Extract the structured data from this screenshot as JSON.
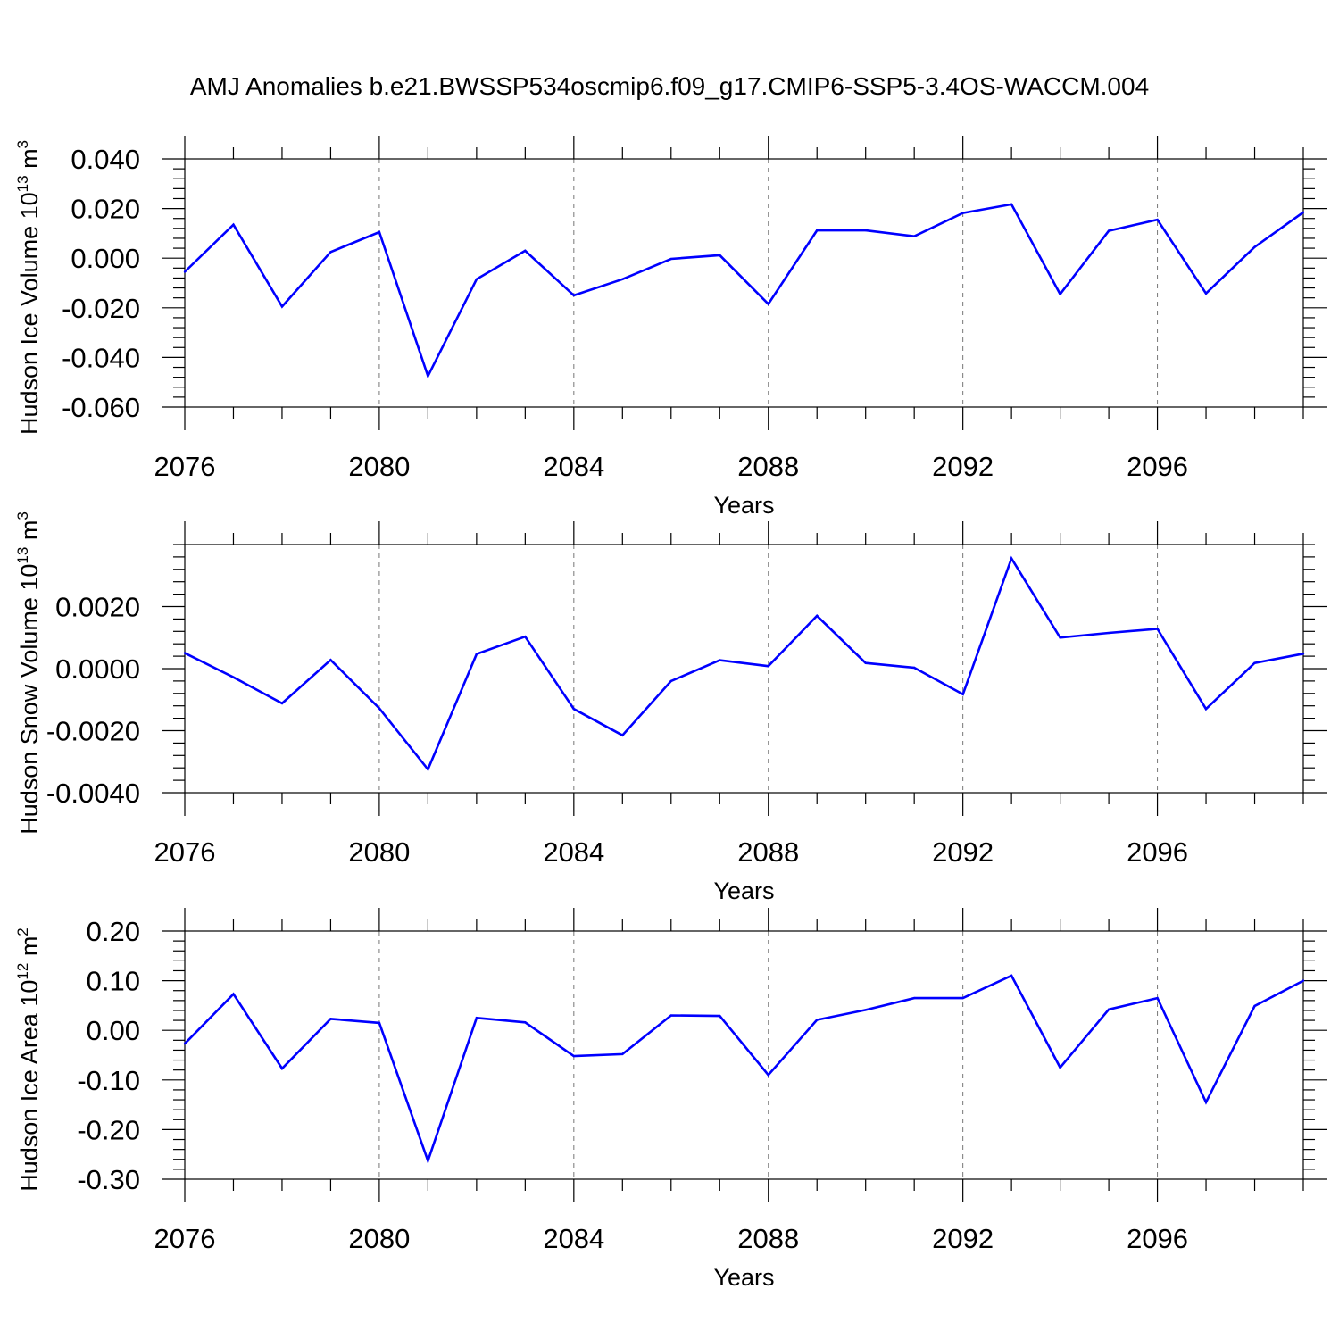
{
  "title": "AMJ Anomalies b.e21.BWSSP534oscmip6.f09_g17.CMIP6-SSP5-3.4OS-WACCM.004",
  "line_color": "#0000ff",
  "chart_data": [
    {
      "type": "line",
      "xlabel": "Years",
      "ylabel": {
        "text": "Hudson Ice Volume 10",
        "exp": "13",
        "unit": "m",
        "unit_exp": "3"
      },
      "x": [
        2076,
        2077,
        2078,
        2079,
        2080,
        2081,
        2082,
        2083,
        2084,
        2085,
        2086,
        2087,
        2088,
        2089,
        2090,
        2091,
        2092,
        2093,
        2094,
        2095,
        2096,
        2097,
        2098,
        2099
      ],
      "values": [
        -0.0055,
        0.0135,
        -0.0195,
        0.0025,
        0.0105,
        -0.0475,
        -0.0085,
        0.003,
        -0.015,
        -0.0085,
        -0.0003,
        0.0012,
        -0.0185,
        0.0112,
        0.0112,
        0.0088,
        0.0182,
        0.0217,
        -0.0145,
        0.011,
        0.0155,
        -0.0142,
        0.0045,
        0.0185
      ],
      "xlim": [
        2076,
        2099
      ],
      "ylim": [
        -0.06,
        0.04
      ],
      "xticks": [
        "2076",
        "2080",
        "2084",
        "2088",
        "2092",
        "2096"
      ],
      "yticks": [
        "0.040",
        "0.020",
        "0.000",
        "-0.020",
        "-0.040",
        "-0.060"
      ],
      "grid": "vertical dashed at major x ticks"
    },
    {
      "type": "line",
      "xlabel": "Years",
      "ylabel": {
        "text": "Hudson Snow Volume 10",
        "exp": "13",
        "unit": "m",
        "unit_exp": "3"
      },
      "x": [
        2076,
        2077,
        2078,
        2079,
        2080,
        2081,
        2082,
        2083,
        2084,
        2085,
        2086,
        2087,
        2088,
        2089,
        2090,
        2091,
        2092,
        2093,
        2094,
        2095,
        2096,
        2097,
        2098,
        2099
      ],
      "values": [
        0.0005,
        -0.00028,
        -0.00112,
        0.00028,
        -0.00128,
        -0.00325,
        0.00047,
        0.00103,
        -0.0013,
        -0.00215,
        -0.0004,
        0.00027,
        8e-05,
        0.0017,
        0.00018,
        3e-05,
        -0.00083,
        0.00355,
        0.001,
        0.00115,
        0.00128,
        -0.0013,
        0.00018,
        0.00048
      ],
      "xlim": [
        2076,
        2099
      ],
      "ylim": [
        -0.004,
        0.004
      ],
      "xticks": [
        "2076",
        "2080",
        "2084",
        "2088",
        "2092",
        "2096"
      ],
      "yticks": [
        "0.0020",
        "0.0000",
        "-0.0020",
        "-0.0040"
      ],
      "grid": "vertical dashed at major x ticks"
    },
    {
      "type": "line",
      "xlabel": "Years",
      "ylabel": {
        "text": "Hudson Ice Area 10",
        "exp": "12",
        "unit": "m",
        "unit_exp": "2"
      },
      "x": [
        2076,
        2077,
        2078,
        2079,
        2080,
        2081,
        2082,
        2083,
        2084,
        2085,
        2086,
        2087,
        2088,
        2089,
        2090,
        2091,
        2092,
        2093,
        2094,
        2095,
        2096,
        2097,
        2098,
        2099
      ],
      "values": [
        -0.027,
        0.073,
        -0.077,
        0.023,
        0.015,
        -0.263,
        0.025,
        0.016,
        -0.052,
        -0.048,
        0.03,
        0.029,
        -0.09,
        0.021,
        0.041,
        0.065,
        0.065,
        0.11,
        -0.075,
        0.042,
        0.065,
        -0.145,
        0.049,
        0.1
      ],
      "xlim": [
        2076,
        2099
      ],
      "ylim": [
        -0.3,
        0.2
      ],
      "xticks": [
        "2076",
        "2080",
        "2084",
        "2088",
        "2092",
        "2096"
      ],
      "yticks": [
        "0.20",
        "0.10",
        "0.00",
        "-0.10",
        "-0.20",
        "-0.30"
      ],
      "grid": "vertical dashed at major x ticks"
    }
  ]
}
